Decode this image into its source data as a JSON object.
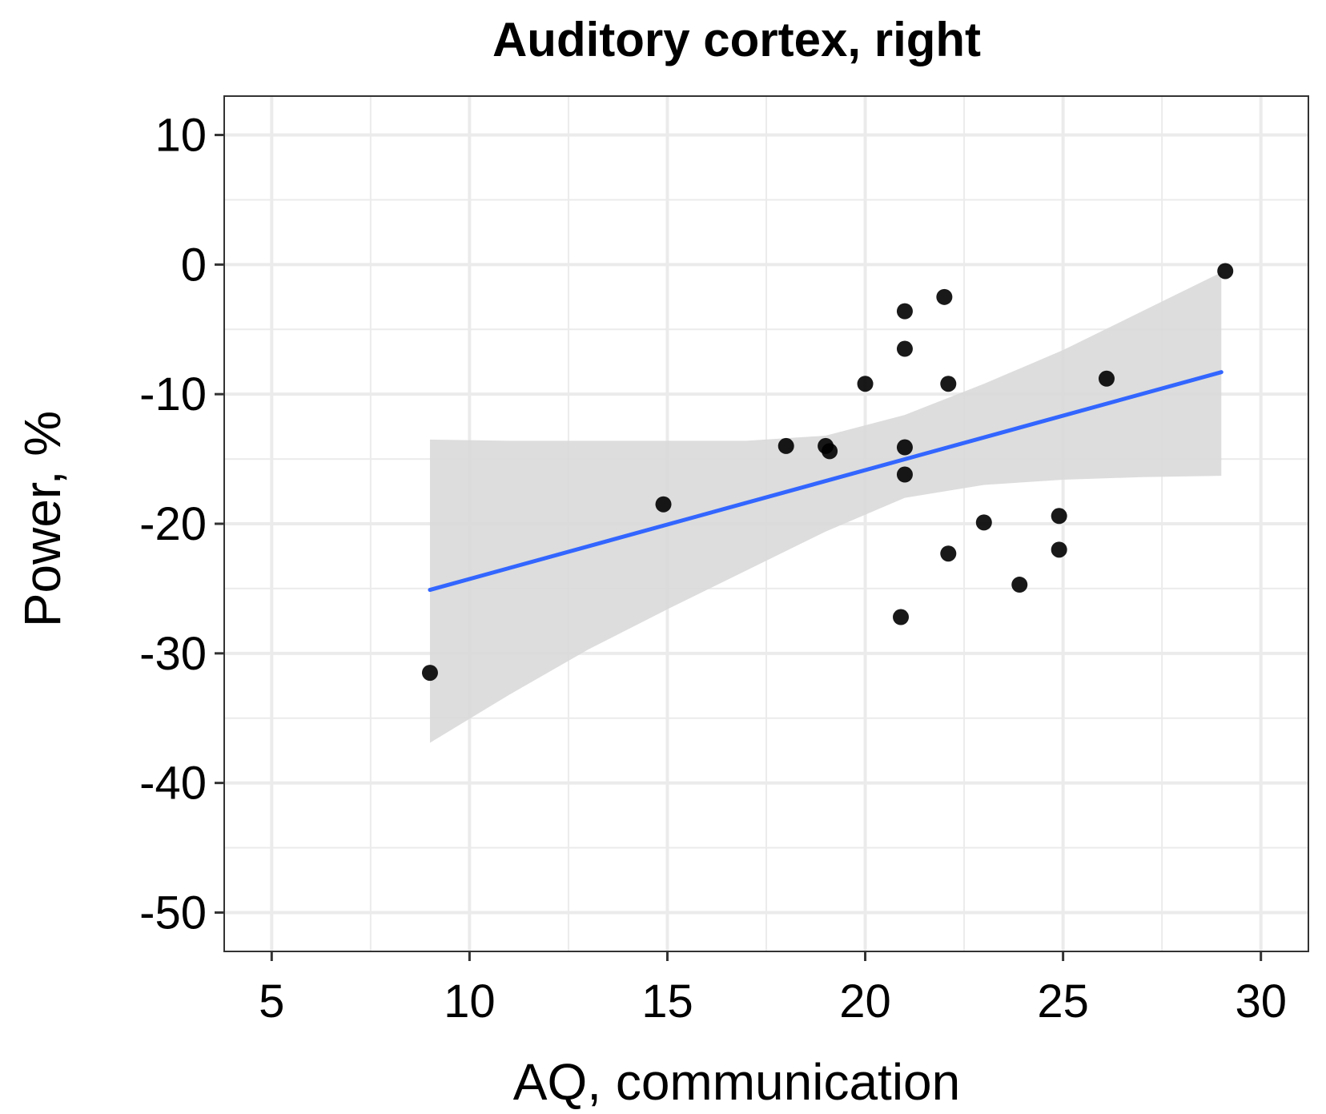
{
  "chart_data": {
    "type": "scatter",
    "title": "Auditory cortex, right",
    "xlabel": "AQ, communication",
    "ylabel": "Power, %",
    "xlim": [
      3.8,
      31.2
    ],
    "ylim": [
      -53,
      13
    ],
    "x_ticks": [
      5,
      10,
      15,
      20,
      25,
      30
    ],
    "y_ticks": [
      10,
      0,
      -10,
      -20,
      -30,
      -40,
      -50
    ],
    "x_tick_labels": [
      "5",
      "10",
      "15",
      "20",
      "25",
      "30"
    ],
    "y_tick_labels": [
      "10",
      "0",
      "-10",
      "-20",
      "-30",
      "-40",
      "-50"
    ],
    "grid": true,
    "points": [
      {
        "x": 9,
        "y": -31.5
      },
      {
        "x": 14.9,
        "y": -18.5
      },
      {
        "x": 18,
        "y": -14
      },
      {
        "x": 19,
        "y": -14
      },
      {
        "x": 19.1,
        "y": -14.4
      },
      {
        "x": 20,
        "y": -9.2
      },
      {
        "x": 20.9,
        "y": -27.2
      },
      {
        "x": 21,
        "y": -3.6
      },
      {
        "x": 21,
        "y": -6.5
      },
      {
        "x": 21,
        "y": -14.1
      },
      {
        "x": 21,
        "y": -16.2
      },
      {
        "x": 22,
        "y": -2.5
      },
      {
        "x": 22.1,
        "y": -9.2
      },
      {
        "x": 22.1,
        "y": -22.3
      },
      {
        "x": 23,
        "y": -19.9
      },
      {
        "x": 23.9,
        "y": -24.7
      },
      {
        "x": 24.9,
        "y": -19.4
      },
      {
        "x": 24.9,
        "y": -22
      },
      {
        "x": 26.1,
        "y": -8.8
      },
      {
        "x": 29.1,
        "y": -0.5
      }
    ],
    "regression": {
      "x": [
        9,
        29
      ],
      "y": [
        -25.1,
        -8.3
      ],
      "color": "#3366ff"
    },
    "confidence_band": {
      "x": [
        9,
        11,
        13,
        15,
        17,
        19,
        21,
        23,
        25,
        27,
        29
      ],
      "lower": [
        -36.9,
        -33.2,
        -29.7,
        -26.6,
        -23.6,
        -20.6,
        -18.0,
        -17.0,
        -16.6,
        -16.4,
        -16.3
      ],
      "upper": [
        -13.5,
        -13.6,
        -13.6,
        -13.6,
        -13.6,
        -13.2,
        -11.6,
        -9.2,
        -6.6,
        -3.6,
        -0.6
      ],
      "color": "#d9d9d9"
    },
    "point_color": "#000000",
    "panel_border_color": "#333333",
    "grid_color": "#ebebeb"
  }
}
